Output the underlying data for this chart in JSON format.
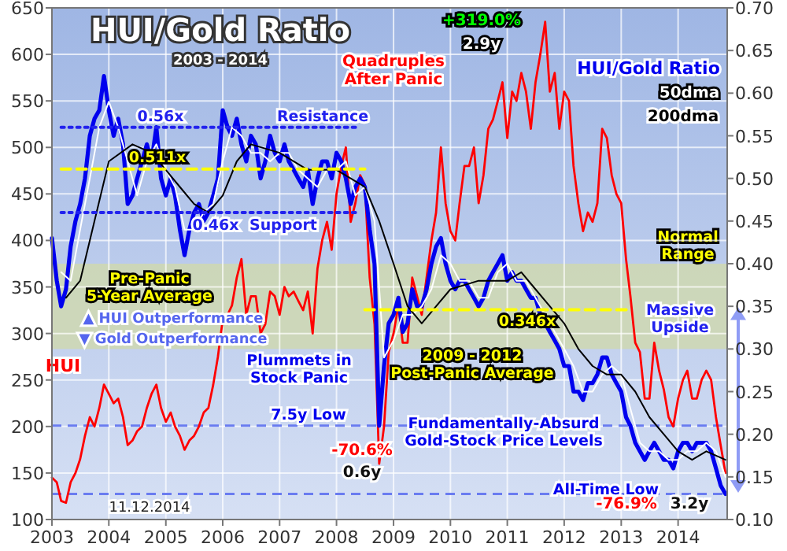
{
  "chart_data": {
    "type": "line",
    "title": "HUI/Gold Ratio",
    "subtitle": "2003 - 2014",
    "x": [
      "2003-01",
      "2003-02",
      "2003-03",
      "2003-04",
      "2003-05",
      "2003-06",
      "2003-07",
      "2003-08",
      "2003-09",
      "2003-10",
      "2003-11",
      "2003-12",
      "2004-01",
      "2004-02",
      "2004-03",
      "2004-04",
      "2004-05",
      "2004-06",
      "2004-07",
      "2004-08",
      "2004-09",
      "2004-10",
      "2004-11",
      "2004-12",
      "2005-01",
      "2005-02",
      "2005-03",
      "2005-04",
      "2005-05",
      "2005-06",
      "2005-07",
      "2005-08",
      "2005-09",
      "2005-10",
      "2005-11",
      "2005-12",
      "2006-01",
      "2006-02",
      "2006-03",
      "2006-04",
      "2006-05",
      "2006-06",
      "2006-07",
      "2006-08",
      "2006-09",
      "2006-10",
      "2006-11",
      "2006-12",
      "2007-01",
      "2007-02",
      "2007-03",
      "2007-04",
      "2007-05",
      "2007-06",
      "2007-07",
      "2007-08",
      "2007-09",
      "2007-10",
      "2007-11",
      "2007-12",
      "2008-01",
      "2008-02",
      "2008-03",
      "2008-04",
      "2008-05",
      "2008-06",
      "2008-07",
      "2008-08",
      "2008-09",
      "2008-10",
      "2008-11",
      "2008-12",
      "2009-01",
      "2009-02",
      "2009-03",
      "2009-04",
      "2009-05",
      "2009-06",
      "2009-07",
      "2009-08",
      "2009-09",
      "2009-10",
      "2009-11",
      "2009-12",
      "2010-01",
      "2010-02",
      "2010-03",
      "2010-04",
      "2010-05",
      "2010-06",
      "2010-07",
      "2010-08",
      "2010-09",
      "2010-10",
      "2010-11",
      "2010-12",
      "2011-01",
      "2011-02",
      "2011-03",
      "2011-04",
      "2011-05",
      "2011-06",
      "2011-07",
      "2011-08",
      "2011-09",
      "2011-10",
      "2011-11",
      "2011-12",
      "2012-01",
      "2012-02",
      "2012-03",
      "2012-04",
      "2012-05",
      "2012-06",
      "2012-07",
      "2012-08",
      "2012-09",
      "2012-10",
      "2012-11",
      "2012-12",
      "2013-01",
      "2013-02",
      "2013-03",
      "2013-04",
      "2013-05",
      "2013-06",
      "2013-07",
      "2013-08",
      "2013-09",
      "2013-10",
      "2013-11",
      "2013-12",
      "2014-01",
      "2014-02",
      "2014-03",
      "2014-04",
      "2014-05",
      "2014-06",
      "2014-07",
      "2014-08",
      "2014-09",
      "2014-10",
      "2014-11"
    ],
    "series": [
      {
        "name": "HUI",
        "color": "#ff0000",
        "values": [
          145,
          140,
          120,
          118,
          140,
          150,
          165,
          190,
          210,
          200,
          220,
          245,
          235,
          225,
          230,
          210,
          180,
          185,
          195,
          200,
          220,
          235,
          245,
          220,
          205,
          215,
          200,
          190,
          175,
          185,
          190,
          200,
          215,
          220,
          245,
          275,
          315,
          320,
          330,
          360,
          380,
          320,
          340,
          340,
          300,
          310,
          345,
          340,
          320,
          350,
          340,
          345,
          335,
          325,
          345,
          300,
          370,
          400,
          420,
          390,
          450,
          480,
          500,
          420,
          440,
          470,
          460,
          360,
          310,
          160,
          200,
          280,
          300,
          330,
          290,
          290,
          360,
          340,
          320,
          360,
          400,
          430,
          500,
          440,
          410,
          400,
          440,
          480,
          480,
          500,
          440,
          470,
          520,
          530,
          550,
          570,
          510,
          560,
          550,
          580,
          560,
          520,
          570,
          600,
          635,
          560,
          580,
          520,
          560,
          550,
          480,
          440,
          410,
          430,
          420,
          440,
          520,
          510,
          470,
          450,
          440,
          380,
          340,
          290,
          280,
          230,
          230,
          290,
          260,
          240,
          210,
          200,
          230,
          250,
          260,
          230,
          230,
          250,
          260,
          250,
          210,
          180,
          150
        ]
      },
      {
        "name": "HUI/Gold Ratio",
        "color": "#0000ee",
        "axis": "y2",
        "values": [
          0.43,
          0.38,
          0.35,
          0.37,
          0.42,
          0.45,
          0.47,
          0.5,
          0.55,
          0.57,
          0.58,
          0.62,
          0.58,
          0.55,
          0.57,
          0.54,
          0.47,
          0.48,
          0.5,
          0.52,
          0.54,
          0.52,
          0.56,
          0.5,
          0.48,
          0.5,
          0.48,
          0.44,
          0.41,
          0.44,
          0.46,
          0.47,
          0.45,
          0.46,
          0.48,
          0.5,
          0.58,
          0.56,
          0.55,
          0.57,
          0.54,
          0.52,
          0.55,
          0.54,
          0.5,
          0.52,
          0.55,
          0.53,
          0.52,
          0.54,
          0.52,
          0.51,
          0.5,
          0.49,
          0.51,
          0.47,
          0.5,
          0.52,
          0.52,
          0.5,
          0.53,
          0.52,
          0.5,
          0.47,
          0.49,
          0.5,
          0.49,
          0.44,
          0.4,
          0.21,
          0.28,
          0.33,
          0.34,
          0.36,
          0.32,
          0.33,
          0.37,
          0.35,
          0.35,
          0.37,
          0.4,
          0.42,
          0.43,
          0.4,
          0.38,
          0.37,
          0.38,
          0.38,
          0.37,
          0.36,
          0.35,
          0.36,
          0.38,
          0.39,
          0.4,
          0.41,
          0.38,
          0.39,
          0.38,
          0.38,
          0.37,
          0.36,
          0.36,
          0.34,
          0.33,
          0.32,
          0.31,
          0.3,
          0.28,
          0.28,
          0.25,
          0.25,
          0.24,
          0.26,
          0.26,
          0.27,
          0.29,
          0.29,
          0.27,
          0.26,
          0.25,
          0.22,
          0.21,
          0.19,
          0.18,
          0.17,
          0.18,
          0.19,
          0.18,
          0.17,
          0.17,
          0.16,
          0.18,
          0.19,
          0.19,
          0.18,
          0.19,
          0.19,
          0.19,
          0.18,
          0.16,
          0.14,
          0.13
        ]
      },
      {
        "name": "50dma",
        "color": "#ffffff",
        "axis": "y2",
        "x": [
          "2003-03",
          "2003-05",
          "2003-07",
          "2003-09",
          "2003-11",
          "2004-01",
          "2004-03",
          "2004-05",
          "2004-07",
          "2004-09",
          "2004-11",
          "2005-01",
          "2005-03",
          "2005-05",
          "2005-07",
          "2005-09",
          "2005-11",
          "2006-01",
          "2006-03",
          "2006-05",
          "2006-07",
          "2006-09",
          "2006-11",
          "2007-01",
          "2007-03",
          "2007-05",
          "2007-07",
          "2007-09",
          "2007-11",
          "2008-01",
          "2008-03",
          "2008-05",
          "2008-07",
          "2008-09",
          "2008-11",
          "2009-01",
          "2009-03",
          "2009-05",
          "2009-07",
          "2009-09",
          "2009-11",
          "2010-01",
          "2010-03",
          "2010-05",
          "2010-07",
          "2010-09",
          "2010-11",
          "2011-01",
          "2011-03",
          "2011-05",
          "2011-07",
          "2011-09",
          "2011-11",
          "2012-01",
          "2012-03",
          "2012-05",
          "2012-07",
          "2012-09",
          "2012-11",
          "2013-01",
          "2013-03",
          "2013-05",
          "2013-07",
          "2013-09",
          "2013-11",
          "2014-01",
          "2014-03",
          "2014-05",
          "2014-07",
          "2014-09",
          "2014-11"
        ],
        "values": [
          0.39,
          0.38,
          0.44,
          0.5,
          0.56,
          0.59,
          0.56,
          0.52,
          0.48,
          0.52,
          0.54,
          0.51,
          0.49,
          0.44,
          0.44,
          0.46,
          0.47,
          0.52,
          0.56,
          0.55,
          0.53,
          0.53,
          0.52,
          0.53,
          0.53,
          0.51,
          0.5,
          0.49,
          0.51,
          0.51,
          0.52,
          0.48,
          0.49,
          0.45,
          0.29,
          0.31,
          0.34,
          0.34,
          0.35,
          0.37,
          0.41,
          0.4,
          0.38,
          0.38,
          0.36,
          0.36,
          0.39,
          0.4,
          0.38,
          0.38,
          0.36,
          0.34,
          0.32,
          0.3,
          0.28,
          0.25,
          0.25,
          0.27,
          0.28,
          0.27,
          0.23,
          0.19,
          0.18,
          0.18,
          0.17,
          0.17,
          0.18,
          0.18,
          0.19,
          0.18,
          0.15
        ]
      },
      {
        "name": "200dma",
        "color": "#000000",
        "axis": "y2",
        "x": [
          "2003-04",
          "2003-07",
          "2003-10",
          "2004-01",
          "2004-06",
          "2004-10",
          "2005-01",
          "2005-04",
          "2005-07",
          "2005-10",
          "2006-01",
          "2006-04",
          "2006-07",
          "2007-01",
          "2007-07",
          "2008-01",
          "2008-04",
          "2008-07",
          "2008-10",
          "2009-01",
          "2009-04",
          "2009-07",
          "2009-10",
          "2010-01",
          "2010-07",
          "2011-01",
          "2011-04",
          "2011-07",
          "2011-10",
          "2012-01",
          "2012-04",
          "2012-07",
          "2012-10",
          "2013-01",
          "2013-04",
          "2013-07",
          "2013-10",
          "2014-01",
          "2014-04",
          "2014-07",
          "2014-11"
        ],
        "values": [
          0.36,
          0.38,
          0.45,
          0.52,
          0.54,
          0.53,
          0.51,
          0.49,
          0.47,
          0.46,
          0.48,
          0.52,
          0.54,
          0.53,
          0.51,
          0.51,
          0.5,
          0.49,
          0.45,
          0.4,
          0.35,
          0.33,
          0.35,
          0.37,
          0.38,
          0.38,
          0.39,
          0.37,
          0.35,
          0.33,
          0.3,
          0.28,
          0.27,
          0.27,
          0.25,
          0.22,
          0.2,
          0.18,
          0.17,
          0.18,
          0.17
        ]
      },
      {
        "color": "#ffff00",
        "axis": "y2",
        "line_style": "dashed",
        "x": [
          "2003-03",
          "2008-07"
        ],
        "values": [
          0.511,
          0.511
        ]
      },
      {
        "color": "#ffff00",
        "axis": "y2",
        "line_style": "dashed",
        "x": [
          "2008-07",
          "2013-03"
        ],
        "values": [
          0.346,
          0.346
        ]
      },
      {
        "color": "#2222ee",
        "axis": "y2",
        "line_style": "dotted",
        "x": [
          "2003-03",
          "2008-06"
        ],
        "values": [
          0.56,
          0.56
        ]
      },
      {
        "color": "#2222ee",
        "axis": "y2",
        "line_style": "dotted",
        "x": [
          "2003-03",
          "2008-06"
        ],
        "values": [
          0.46,
          0.46
        ]
      }
    ],
    "xlim": [
      "2003-01-01",
      "2014-11-12"
    ],
    "xticks": [
      "2003",
      "2004",
      "2005",
      "2006",
      "2007",
      "2008",
      "2009",
      "2010",
      "2011",
      "2012",
      "2013",
      "2014"
    ],
    "ylim": [
      100,
      650
    ],
    "yticks": [
      100,
      150,
      200,
      250,
      300,
      350,
      400,
      450,
      500,
      550,
      600,
      650
    ],
    "y2lim": [
      0.1,
      0.7
    ],
    "y2ticks": [
      {
        "value": 0.1,
        "label": "0.10"
      },
      {
        "value": 0.15,
        "label": "0.15"
      },
      {
        "value": 0.2,
        "label": "0.20"
      },
      {
        "value": 0.25,
        "label": "0.25"
      },
      {
        "value": 0.3,
        "label": "0.30"
      },
      {
        "value": 0.35,
        "label": "0.35"
      },
      {
        "value": 0.4,
        "label": "0.40"
      },
      {
        "value": 0.45,
        "label": "0.45"
      },
      {
        "value": 0.5,
        "label": "0.50"
      },
      {
        "value": 0.55,
        "label": "0.55"
      },
      {
        "value": 0.6,
        "label": "0.60"
      },
      {
        "value": 0.65,
        "label": "0.65"
      },
      {
        "value": 0.7,
        "label": "0.70"
      }
    ],
    "grid": true,
    "bands": [
      {
        "axis": "y2",
        "from": 0.3,
        "to": 0.4,
        "label": "Normal Range",
        "color": "#cfd8b0"
      }
    ],
    "ref_lines": [
      {
        "axis": "y2",
        "value": 0.21,
        "label": "7.5y Low",
        "color": "#6a7cf0",
        "line_style": "dashed"
      },
      {
        "axis": "y2",
        "value": 0.13,
        "label": "All-Time Low",
        "color": "#6a7cf0",
        "line_style": "dashed"
      }
    ],
    "annotations": [
      "+319.0%",
      "2.9y",
      "Quadruples\nAfter Panic",
      "0.56x",
      "Resistance",
      "0.511x",
      "0.46x",
      "Support",
      "Pre-Panic\n5-Year Average",
      "▲ HUI Outperformance",
      "▼ Gold Outperformance",
      "Plummets in\nStock Panic",
      "-70.6%",
      "0.6y",
      "11.12.2014",
      "0.346x",
      "2009 - 2012\nPost-Panic Average",
      "Massive\nUpside",
      "Fundamentally-Absurd\nGold-Stock Price Levels",
      "-76.9%",
      "3.2y"
    ]
  }
}
